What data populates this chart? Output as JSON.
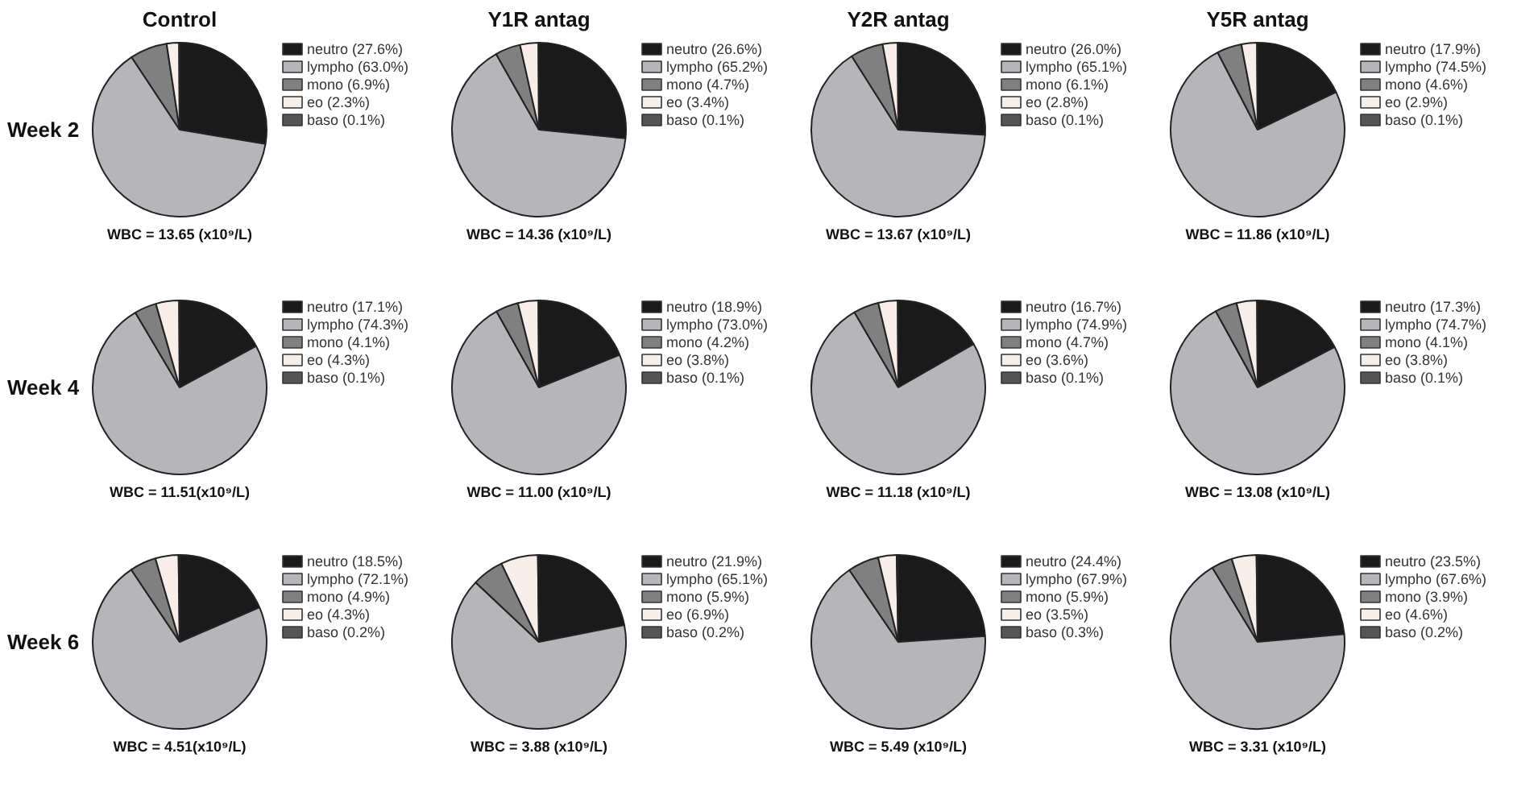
{
  "chart_data": [
    {
      "type": "pie",
      "title": "Control",
      "ylabel": "Week 2",
      "xlabel": "WBC = 13.65 (x10⁹/L)",
      "categories": [
        "neutro (27.6%)",
        "lympho (63.0%)",
        "mono (6.9%)",
        "eo (2.3%)",
        "baso (0.1%)"
      ],
      "values": [
        27.6,
        63.0,
        6.9,
        2.3,
        0.1
      ],
      "colors": [
        "#1a1a1a",
        "#b5b5ba",
        "#808080",
        "#f7eeea",
        "#555555"
      ],
      "legend": "right"
    },
    {
      "type": "pie",
      "title": "Y1R antag",
      "xlabel": "WBC = 14.36 (x10⁹/L)",
      "categories": [
        "neutro (26.6%)",
        "lympho (65.2%)",
        "mono (4.7%)",
        "eo (3.4%)",
        "baso (0.1%)"
      ],
      "values": [
        26.6,
        65.2,
        4.7,
        3.4,
        0.1
      ],
      "colors": [
        "#1a1a1a",
        "#b5b5ba",
        "#808080",
        "#f7eeea",
        "#555555"
      ],
      "legend": "right"
    },
    {
      "type": "pie",
      "title": "Y2R antag",
      "xlabel": "WBC = 13.67 (x10⁹/L)",
      "categories": [
        "neutro (26.0%)",
        "lympho (65.1%)",
        "mono (6.1%)",
        "eo (2.8%)",
        "baso (0.1%)"
      ],
      "values": [
        26.0,
        65.1,
        6.1,
        2.8,
        0.1
      ],
      "colors": [
        "#1a1a1a",
        "#b5b5ba",
        "#808080",
        "#f7eeea",
        "#555555"
      ],
      "legend": "right"
    },
    {
      "type": "pie",
      "title": "Y5R antag",
      "xlabel": "WBC = 11.86 (x10⁹/L)",
      "categories": [
        "neutro (17.9%)",
        "lympho (74.5%)",
        "mono (4.6%)",
        "eo (2.9%)",
        "baso (0.1%)"
      ],
      "values": [
        17.9,
        74.5,
        4.6,
        2.9,
        0.1
      ],
      "colors": [
        "#1a1a1a",
        "#b5b5ba",
        "#808080",
        "#f7eeea",
        "#555555"
      ],
      "legend": "right"
    },
    {
      "type": "pie",
      "ylabel": "Week 4",
      "xlabel": "WBC = 11.51(x10⁹/L)",
      "categories": [
        "neutro (17.1%)",
        "lympho (74.3%)",
        "mono (4.1%)",
        "eo (4.3%)",
        "baso (0.1%)"
      ],
      "values": [
        17.1,
        74.3,
        4.1,
        4.3,
        0.1
      ],
      "colors": [
        "#1a1a1a",
        "#b5b5ba",
        "#808080",
        "#f7eeea",
        "#555555"
      ],
      "legend": "right"
    },
    {
      "type": "pie",
      "xlabel": "WBC = 11.00 (x10⁹/L)",
      "categories": [
        "neutro (18.9%)",
        "lympho (73.0%)",
        "mono (4.2%)",
        "eo (3.8%)",
        "baso (0.1%)"
      ],
      "values": [
        18.9,
        73.0,
        4.2,
        3.8,
        0.1
      ],
      "colors": [
        "#1a1a1a",
        "#b5b5ba",
        "#808080",
        "#f7eeea",
        "#555555"
      ],
      "legend": "right"
    },
    {
      "type": "pie",
      "xlabel": "WBC = 11.18 (x10⁹/L)",
      "categories": [
        "neutro (16.7%)",
        "lympho (74.9%)",
        "mono (4.7%)",
        "eo (3.6%)",
        "baso (0.1%)"
      ],
      "values": [
        16.7,
        74.9,
        4.7,
        3.6,
        0.1
      ],
      "colors": [
        "#1a1a1a",
        "#b5b5ba",
        "#808080",
        "#f7eeea",
        "#555555"
      ],
      "legend": "right"
    },
    {
      "type": "pie",
      "xlabel": "WBC = 13.08 (x10⁹/L)",
      "categories": [
        "neutro (17.3%)",
        "lympho (74.7%)",
        "mono (4.1%)",
        "eo (3.8%)",
        "baso (0.1%)"
      ],
      "values": [
        17.3,
        74.7,
        4.1,
        3.8,
        0.1
      ],
      "colors": [
        "#1a1a1a",
        "#b5b5ba",
        "#808080",
        "#f7eeea",
        "#555555"
      ],
      "legend": "right"
    },
    {
      "type": "pie",
      "ylabel": "Week 6",
      "xlabel": "WBC = 4.51(x10⁹/L)",
      "categories": [
        "neutro (18.5%)",
        "lympho (72.1%)",
        "mono (4.9%)",
        "eo (4.3%)",
        "baso (0.2%)"
      ],
      "values": [
        18.5,
        72.1,
        4.9,
        4.3,
        0.2
      ],
      "colors": [
        "#1a1a1a",
        "#b5b5ba",
        "#808080",
        "#f7eeea",
        "#555555"
      ],
      "legend": "right"
    },
    {
      "type": "pie",
      "xlabel": "WBC = 3.88 (x10⁹/L)",
      "categories": [
        "neutro (21.9%)",
        "lympho (65.1%)",
        "mono (5.9%)",
        "eo (6.9%)",
        "baso (0.2%)"
      ],
      "values": [
        21.9,
        65.1,
        5.9,
        6.9,
        0.2
      ],
      "colors": [
        "#1a1a1a",
        "#b5b5ba",
        "#808080",
        "#f7eeea",
        "#555555"
      ],
      "legend": "right"
    },
    {
      "type": "pie",
      "xlabel": "WBC = 5.49 (x10⁹/L)",
      "categories": [
        "neutro (24.4%)",
        "lympho (67.9%)",
        "mono (5.9%)",
        "eo (3.5%)",
        "baso (0.3%)"
      ],
      "values": [
        24.4,
        67.9,
        5.9,
        3.5,
        0.3
      ],
      "colors": [
        "#1a1a1a",
        "#b5b5ba",
        "#808080",
        "#f7eeea",
        "#555555"
      ],
      "legend": "right"
    },
    {
      "type": "pie",
      "xlabel": "WBC = 3.31 (x10⁹/L)",
      "categories": [
        "neutro (23.5%)",
        "lympho (67.6%)",
        "mono (3.9%)",
        "eo (4.6%)",
        "baso (0.2%)"
      ],
      "values": [
        23.5,
        67.6,
        3.9,
        4.6,
        0.2
      ],
      "colors": [
        "#1a1a1a",
        "#b5b5ba",
        "#808080",
        "#f7eeea",
        "#555555"
      ],
      "legend": "right"
    }
  ]
}
